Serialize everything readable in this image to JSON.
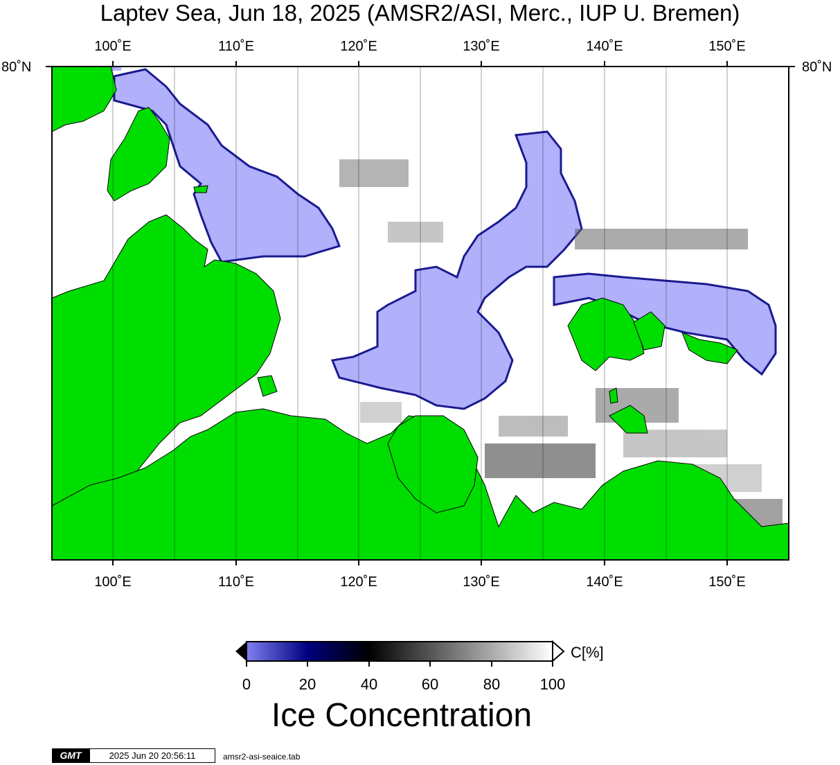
{
  "title": "Laptev Sea, Jun 18, 2025 (AMSR2/ASI, Merc., IUP U. Bremen)",
  "longitude_ticks": [
    "100˚E",
    "110˚E",
    "120˚E",
    "130˚E",
    "140˚E",
    "150˚E"
  ],
  "latitude_labels": {
    "left": "80˚N",
    "right": "80˚N"
  },
  "colorbar": {
    "tick_labels": [
      "0",
      "20",
      "40",
      "60",
      "80",
      "100"
    ],
    "unit": "C[%]",
    "title": "Ice Concentration",
    "stops": [
      {
        "value": 0,
        "color": "#8080f0"
      },
      {
        "value": 20,
        "color": "#000080"
      },
      {
        "value": 40,
        "color": "#000000"
      },
      {
        "value": 100,
        "color": "#ffffff"
      }
    ]
  },
  "colors": {
    "land": "#00dd00",
    "open_water": "#b0b0fb",
    "ice": "#ffffff"
  },
  "footer": {
    "logo": "GMT",
    "timestamp": "2025 Jun 20 20:56:11",
    "file": "amsr2-asi-seaice.tab"
  }
}
